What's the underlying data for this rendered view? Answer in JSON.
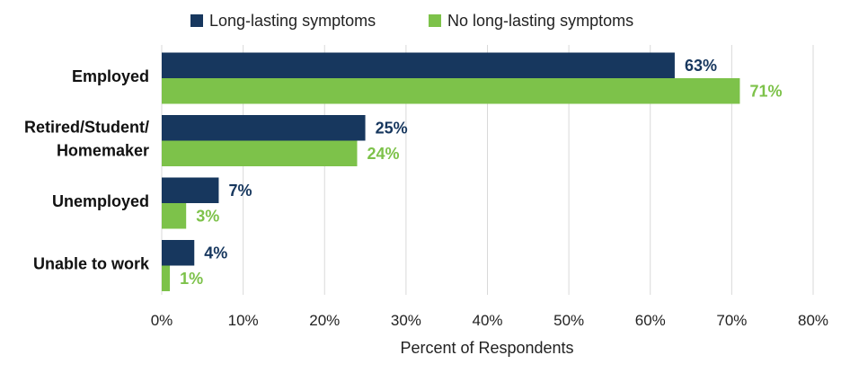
{
  "chart_data": {
    "type": "bar",
    "orientation": "horizontal",
    "categories": [
      [
        "Employed"
      ],
      [
        "Retired/Student/",
        "Homemaker"
      ],
      [
        "Unemployed"
      ],
      [
        "Unable to work"
      ]
    ],
    "series": [
      {
        "name": "Long-lasting symptoms",
        "color": "#17375e",
        "values": [
          63,
          25,
          7,
          4
        ],
        "labels": [
          "63%",
          "25%",
          "7%",
          "4%"
        ]
      },
      {
        "name": "No long-lasting symptoms",
        "color": "#7dc24a",
        "values": [
          71,
          24,
          3,
          1
        ],
        "labels": [
          "71%",
          "24%",
          "3%",
          "1%"
        ]
      }
    ],
    "xlim": [
      0,
      80
    ],
    "xticks": [
      0,
      10,
      20,
      30,
      40,
      50,
      60,
      70,
      80
    ],
    "xtick_labels": [
      "0%",
      "10%",
      "20%",
      "30%",
      "40%",
      "50%",
      "60%",
      "70%",
      "80%"
    ],
    "xlabel": "Percent of Respondents",
    "ylabel": "",
    "grid": "vertical",
    "legend_position": "top"
  }
}
